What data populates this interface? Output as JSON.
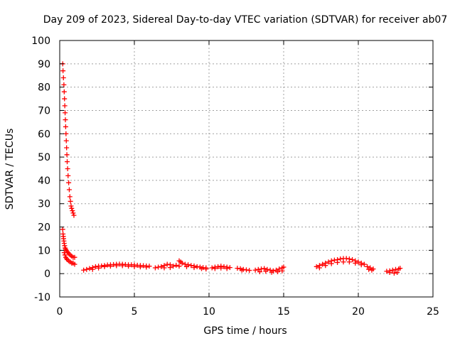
{
  "chart_data": {
    "type": "scatter",
    "title": "Day 209 of 2023, Sidereal Day-to-day VTEC variation (SDTVAR) for receiver ab07",
    "xlabel": "GPS time / hours",
    "ylabel": "SDTVAR / TECUs",
    "xlim": [
      0,
      25
    ],
    "ylim": [
      -10,
      100
    ],
    "xticks": [
      0,
      5,
      10,
      15,
      20,
      25
    ],
    "yticks": [
      -10,
      0,
      10,
      20,
      30,
      40,
      50,
      60,
      70,
      80,
      90,
      100
    ],
    "grid": true,
    "marker": "+",
    "series": [
      {
        "name": "SDTVAR",
        "color": "#ff0000",
        "segments": [
          {
            "id": "steep-decay-high",
            "points": [
              [
                0.2,
                90
              ],
              [
                0.22,
                87
              ],
              [
                0.25,
                84
              ],
              [
                0.28,
                81
              ],
              [
                0.3,
                78
              ],
              [
                0.32,
                75
              ],
              [
                0.34,
                72
              ],
              [
                0.36,
                69
              ],
              [
                0.38,
                66
              ],
              [
                0.4,
                63
              ],
              [
                0.42,
                60
              ],
              [
                0.44,
                57
              ],
              [
                0.46,
                54
              ],
              [
                0.48,
                51
              ],
              [
                0.5,
                48
              ],
              [
                0.53,
                45
              ],
              [
                0.56,
                42
              ],
              [
                0.6,
                39
              ],
              [
                0.64,
                36
              ],
              [
                0.68,
                33
              ],
              [
                0.72,
                31
              ],
              [
                0.76,
                29
              ],
              [
                0.8,
                28
              ],
              [
                0.85,
                27
              ],
              [
                0.9,
                26
              ],
              [
                0.95,
                25
              ]
            ]
          },
          {
            "id": "steep-decay-low",
            "points": [
              [
                0.2,
                19
              ],
              [
                0.22,
                17
              ],
              [
                0.24,
                16
              ],
              [
                0.26,
                15
              ],
              [
                0.28,
                14
              ],
              [
                0.3,
                13
              ],
              [
                0.33,
                12
              ],
              [
                0.36,
                11
              ],
              [
                0.4,
                10.5
              ],
              [
                0.44,
                10
              ],
              [
                0.5,
                9.5
              ],
              [
                0.56,
                9
              ],
              [
                0.62,
                8.5
              ],
              [
                0.7,
                8
              ],
              [
                0.8,
                7.5
              ],
              [
                0.9,
                7
              ],
              [
                1.0,
                7
              ],
              [
                0.3,
                9
              ],
              [
                0.35,
                8
              ],
              [
                0.4,
                7
              ],
              [
                0.45,
                6.5
              ],
              [
                0.5,
                6
              ],
              [
                0.6,
                5.5
              ],
              [
                0.7,
                5
              ],
              [
                0.8,
                4.5
              ],
              [
                0.9,
                4.5
              ],
              [
                1.0,
                4
              ]
            ]
          },
          {
            "id": "night-segment-1",
            "points": [
              [
                1.6,
                1.5
              ],
              [
                1.8,
                1.8
              ],
              [
                2.0,
                2.2
              ],
              [
                2.2,
                2.6
              ],
              [
                2.4,
                3.0
              ],
              [
                2.6,
                3.2
              ],
              [
                2.8,
                3.3
              ],
              [
                3.0,
                3.5
              ],
              [
                3.2,
                3.7
              ],
              [
                3.4,
                3.8
              ],
              [
                3.6,
                3.9
              ],
              [
                3.8,
                4.0
              ],
              [
                4.0,
                4.1
              ],
              [
                4.2,
                4.0
              ],
              [
                4.4,
                3.9
              ],
              [
                4.6,
                3.8
              ],
              [
                4.8,
                3.8
              ],
              [
                5.0,
                3.7
              ],
              [
                5.2,
                3.6
              ],
              [
                5.4,
                3.5
              ],
              [
                5.6,
                3.4
              ],
              [
                5.8,
                3.3
              ],
              [
                6.0,
                3.2
              ],
              [
                2.2,
                1.8
              ],
              [
                2.6,
                2.4
              ],
              [
                3.0,
                3.0
              ],
              [
                3.4,
                3.2
              ],
              [
                3.8,
                3.4
              ],
              [
                4.2,
                3.4
              ],
              [
                4.6,
                3.2
              ],
              [
                5.0,
                3.0
              ],
              [
                5.4,
                2.9
              ],
              [
                5.8,
                2.8
              ]
            ]
          },
          {
            "id": "night-segment-2",
            "points": [
              [
                6.4,
                2.5
              ],
              [
                6.6,
                2.8
              ],
              [
                6.8,
                3.0
              ],
              [
                7.0,
                3.5
              ],
              [
                7.2,
                4.0
              ],
              [
                7.4,
                3.8
              ],
              [
                7.6,
                3.2
              ],
              [
                7.8,
                3.6
              ],
              [
                8.0,
                5.5
              ],
              [
                8.1,
                5.0
              ],
              [
                8.2,
                4.5
              ],
              [
                8.4,
                4.0
              ],
              [
                8.6,
                3.8
              ],
              [
                8.8,
                3.5
              ],
              [
                9.0,
                3.3
              ],
              [
                9.2,
                3.0
              ],
              [
                9.4,
                2.8
              ],
              [
                9.6,
                2.6
              ],
              [
                9.8,
                2.5
              ],
              [
                7.0,
                2.5
              ],
              [
                7.4,
                2.6
              ],
              [
                8.0,
                3.2
              ],
              [
                8.5,
                3.0
              ],
              [
                9.0,
                2.6
              ],
              [
                9.5,
                2.2
              ],
              [
                9.8,
                2.0
              ]
            ]
          },
          {
            "id": "night-segment-3",
            "points": [
              [
                10.2,
                2.5
              ],
              [
                10.4,
                2.8
              ],
              [
                10.6,
                3.0
              ],
              [
                10.8,
                3.2
              ],
              [
                11.0,
                3.0
              ],
              [
                11.2,
                2.8
              ],
              [
                11.4,
                2.6
              ],
              [
                10.4,
                2.2
              ],
              [
                10.8,
                2.4
              ],
              [
                11.2,
                2.2
              ]
            ]
          },
          {
            "id": "night-segment-4",
            "points": [
              [
                11.9,
                2.3
              ],
              [
                12.1,
                2.1
              ],
              [
                12.3,
                1.8
              ],
              [
                12.5,
                1.6
              ],
              [
                12.7,
                1.4
              ],
              [
                12.2,
                1.5
              ]
            ]
          },
          {
            "id": "night-segment-5",
            "points": [
              [
                13.1,
                1.5
              ],
              [
                13.3,
                1.8
              ],
              [
                13.5,
                2.0
              ],
              [
                13.7,
                2.2
              ],
              [
                13.9,
                1.8
              ],
              [
                14.1,
                1.5
              ],
              [
                14.3,
                1.2
              ],
              [
                14.5,
                1.5
              ],
              [
                14.7,
                2.0
              ],
              [
                14.9,
                2.5
              ],
              [
                15.0,
                2.8
              ],
              [
                13.4,
                0.8
              ],
              [
                13.8,
                1.0
              ],
              [
                14.2,
                0.6
              ],
              [
                14.6,
                0.8
              ],
              [
                14.9,
                1.2
              ]
            ]
          },
          {
            "id": "day-segment-1",
            "points": [
              [
                17.2,
                3.0
              ],
              [
                17.4,
                3.5
              ],
              [
                17.6,
                4.0
              ],
              [
                17.8,
                4.5
              ],
              [
                18.0,
                5.0
              ],
              [
                18.2,
                5.5
              ],
              [
                18.4,
                5.8
              ],
              [
                18.6,
                6.0
              ],
              [
                18.8,
                6.3
              ],
              [
                19.0,
                6.5
              ],
              [
                19.2,
                6.5
              ],
              [
                19.4,
                6.3
              ],
              [
                19.6,
                6.0
              ],
              [
                19.8,
                5.5
              ],
              [
                20.0,
                5.0
              ],
              [
                20.2,
                4.5
              ],
              [
                20.4,
                4.0
              ],
              [
                17.4,
                2.5
              ],
              [
                17.8,
                3.5
              ],
              [
                18.2,
                4.3
              ],
              [
                18.6,
                4.8
              ],
              [
                19.0,
                5.0
              ],
              [
                19.4,
                5.0
              ],
              [
                19.8,
                4.5
              ],
              [
                20.2,
                3.8
              ]
            ]
          },
          {
            "id": "day-segment-2",
            "points": [
              [
                20.6,
                3.0
              ],
              [
                20.8,
                2.5
              ],
              [
                21.0,
                2.0
              ],
              [
                20.7,
                1.8
              ],
              [
                20.9,
                1.5
              ]
            ]
          },
          {
            "id": "day-segment-3",
            "points": [
              [
                21.9,
                1.0
              ],
              [
                22.1,
                1.2
              ],
              [
                22.3,
                1.5
              ],
              [
                22.5,
                1.8
              ],
              [
                22.7,
                2.0
              ],
              [
                22.8,
                2.3
              ],
              [
                22.1,
                0.5
              ],
              [
                22.4,
                0.2
              ],
              [
                22.6,
                0.5
              ]
            ]
          }
        ]
      }
    ]
  }
}
